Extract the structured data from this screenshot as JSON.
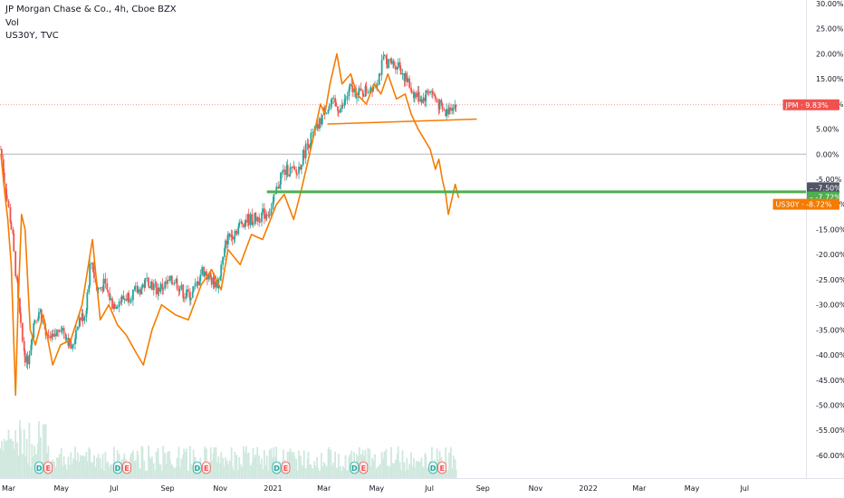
{
  "legend": {
    "line1": "JP Morgan Chase & Co., 4h, Cboe BZX",
    "line2": "Vol",
    "line3": "US30Y, TVC"
  },
  "colors": {
    "candle_up": "#26a69a",
    "candle_down": "#ef5350",
    "us30y": "#f57c00",
    "hline_green": "#4caf50",
    "hline_orange": "#f57c00",
    "zero_line": "#b2b5be",
    "volume": "#cfe8de",
    "tag_jpm": "#ef5350",
    "tag_dark": "#4f5563",
    "tag_green": "#4caf50",
    "tag_us30y": "#f57c00",
    "ev_dividend_bg": "#e3f6f3",
    "ev_dividend_fg": "#26a69a",
    "ev_earnings_bg": "#fdecec",
    "ev_earnings_fg": "#ef5350"
  },
  "chart_data": {
    "type": "line",
    "y_unit": "%",
    "ylim": [
      -62,
      30
    ],
    "xlim": [
      "2020-02-20",
      "2022-09-10"
    ],
    "y_ticks": [
      "30.00%",
      "25.00%",
      "20.00%",
      "15.00%",
      "10.00%",
      "5.00%",
      "0.00%",
      "-5.00%",
      "-10.00%",
      "-15.00%",
      "-20.00%",
      "-25.00%",
      "-30.00%",
      "-35.00%",
      "-40.00%",
      "-45.00%",
      "-50.00%",
      "-55.00%",
      "-60.00%"
    ],
    "y_tick_values": [
      30,
      25,
      20,
      15,
      10,
      5,
      0,
      -5,
      -10,
      -15,
      -20,
      -25,
      -30,
      -35,
      -40,
      -45,
      -50,
      -55,
      -60
    ],
    "x_ticks": [
      {
        "label": "Mar",
        "date": "2020-03-01"
      },
      {
        "label": "May",
        "date": "2020-05-01"
      },
      {
        "label": "Jul",
        "date": "2020-07-01"
      },
      {
        "label": "Sep",
        "date": "2020-09-01"
      },
      {
        "label": "Nov",
        "date": "2020-11-01"
      },
      {
        "label": "2021",
        "date": "2021-01-01"
      },
      {
        "label": "Mar",
        "date": "2021-03-01"
      },
      {
        "label": "May",
        "date": "2021-05-01"
      },
      {
        "label": "Jul",
        "date": "2021-07-01"
      },
      {
        "label": "Sep",
        "date": "2021-09-01"
      },
      {
        "label": "Nov",
        "date": "2021-11-01"
      },
      {
        "label": "2022",
        "date": "2022-01-01"
      },
      {
        "label": "Mar",
        "date": "2022-03-01"
      },
      {
        "label": "May",
        "date": "2022-05-01"
      },
      {
        "label": "Jul",
        "date": "2022-07-01"
      }
    ],
    "series": [
      {
        "name": "JP Morgan Chase & Co.",
        "kind": "candles",
        "points": [
          [
            "2020-02-21",
            1
          ],
          [
            "2020-02-28",
            -8
          ],
          [
            "2020-03-06",
            -16
          ],
          [
            "2020-03-13",
            -30
          ],
          [
            "2020-03-18",
            -38
          ],
          [
            "2020-03-23",
            -42
          ],
          [
            "2020-03-31",
            -33
          ],
          [
            "2020-04-07",
            -31
          ],
          [
            "2020-04-15",
            -37
          ],
          [
            "2020-04-23",
            -37
          ],
          [
            "2020-04-30",
            -34
          ],
          [
            "2020-05-07",
            -36
          ],
          [
            "2020-05-14",
            -39
          ],
          [
            "2020-05-21",
            -33
          ],
          [
            "2020-05-29",
            -32
          ],
          [
            "2020-06-05",
            -21
          ],
          [
            "2020-06-12",
            -27
          ],
          [
            "2020-06-20",
            -26
          ],
          [
            "2020-06-30",
            -30
          ],
          [
            "2020-07-10",
            -29
          ],
          [
            "2020-07-20",
            -28
          ],
          [
            "2020-07-31",
            -27
          ],
          [
            "2020-08-10",
            -25
          ],
          [
            "2020-08-20",
            -27
          ],
          [
            "2020-08-31",
            -26
          ],
          [
            "2020-09-10",
            -25
          ],
          [
            "2020-09-21",
            -28
          ],
          [
            "2020-09-30",
            -28
          ],
          [
            "2020-10-12",
            -23
          ],
          [
            "2020-10-22",
            -25
          ],
          [
            "2020-10-30",
            -26
          ],
          [
            "2020-11-09",
            -17
          ],
          [
            "2020-11-20",
            -15
          ],
          [
            "2020-11-30",
            -13
          ],
          [
            "2020-12-10",
            -13
          ],
          [
            "2020-12-21",
            -12
          ],
          [
            "2020-12-31",
            -11
          ],
          [
            "2021-01-11",
            -4
          ],
          [
            "2021-01-20",
            -3
          ],
          [
            "2021-01-29",
            -4
          ],
          [
            "2021-02-10",
            2
          ],
          [
            "2021-02-22",
            5
          ],
          [
            "2021-03-03",
            9
          ],
          [
            "2021-03-12",
            10
          ],
          [
            "2021-03-22",
            9
          ],
          [
            "2021-04-01",
            13
          ],
          [
            "2021-04-12",
            12
          ],
          [
            "2021-04-22",
            13
          ],
          [
            "2021-05-03",
            15
          ],
          [
            "2021-05-10",
            19
          ],
          [
            "2021-05-17",
            18
          ],
          [
            "2021-05-27",
            18
          ],
          [
            "2021-06-04",
            15
          ],
          [
            "2021-06-14",
            12
          ],
          [
            "2021-06-24",
            11
          ],
          [
            "2021-07-02",
            13
          ],
          [
            "2021-07-12",
            10
          ],
          [
            "2021-07-20",
            8
          ],
          [
            "2021-07-28",
            10
          ],
          [
            "2021-08-03",
            9.8
          ]
        ]
      },
      {
        "name": "US30Y",
        "kind": "line",
        "points": [
          [
            "2020-02-21",
            0
          ],
          [
            "2020-02-25",
            -7
          ],
          [
            "2020-02-29",
            -13
          ],
          [
            "2020-03-04",
            -22
          ],
          [
            "2020-03-09",
            -48
          ],
          [
            "2020-03-12",
            -30
          ],
          [
            "2020-03-16",
            -12
          ],
          [
            "2020-03-20",
            -15
          ],
          [
            "2020-03-26",
            -35
          ],
          [
            "2020-04-01",
            -38
          ],
          [
            "2020-04-10",
            -32
          ],
          [
            "2020-04-21",
            -42
          ],
          [
            "2020-04-30",
            -38
          ],
          [
            "2020-05-12",
            -37
          ],
          [
            "2020-05-25",
            -30
          ],
          [
            "2020-06-06",
            -17
          ],
          [
            "2020-06-15",
            -33
          ],
          [
            "2020-06-25",
            -30
          ],
          [
            "2020-07-05",
            -34
          ],
          [
            "2020-07-15",
            -36
          ],
          [
            "2020-07-28",
            -40
          ],
          [
            "2020-08-04",
            -42
          ],
          [
            "2020-08-14",
            -35
          ],
          [
            "2020-08-25",
            -30
          ],
          [
            "2020-09-10",
            -32
          ],
          [
            "2020-09-25",
            -33
          ],
          [
            "2020-10-10",
            -26
          ],
          [
            "2020-10-22",
            -23
          ],
          [
            "2020-11-02",
            -27
          ],
          [
            "2020-11-10",
            -19
          ],
          [
            "2020-11-24",
            -22
          ],
          [
            "2020-12-07",
            -16
          ],
          [
            "2020-12-20",
            -17
          ],
          [
            "2021-01-05",
            -10
          ],
          [
            "2021-01-14",
            -8
          ],
          [
            "2021-01-25",
            -13
          ],
          [
            "2021-02-03",
            -7
          ],
          [
            "2021-02-15",
            2
          ],
          [
            "2021-02-25",
            10
          ],
          [
            "2021-03-02",
            8
          ],
          [
            "2021-03-08",
            14
          ],
          [
            "2021-03-16",
            20
          ],
          [
            "2021-03-22",
            14
          ],
          [
            "2021-04-01",
            16
          ],
          [
            "2021-04-08",
            12
          ],
          [
            "2021-04-19",
            10
          ],
          [
            "2021-04-28",
            14
          ],
          [
            "2021-05-06",
            12
          ],
          [
            "2021-05-14",
            16
          ],
          [
            "2021-05-24",
            11
          ],
          [
            "2021-06-03",
            12
          ],
          [
            "2021-06-10",
            8
          ],
          [
            "2021-06-18",
            5
          ],
          [
            "2021-06-25",
            3
          ],
          [
            "2021-07-02",
            1
          ],
          [
            "2021-07-08",
            -3
          ],
          [
            "2021-07-12",
            -1
          ],
          [
            "2021-07-16",
            -5
          ],
          [
            "2021-07-20",
            -8
          ],
          [
            "2021-07-23",
            -12
          ],
          [
            "2021-07-27",
            -9
          ],
          [
            "2021-07-31",
            -6
          ],
          [
            "2021-08-04",
            -8.7
          ]
        ]
      }
    ],
    "annotations": [
      {
        "label": "JPM",
        "value": "9.83%",
        "y": 9.83
      },
      {
        "label": "",
        "value": "-7.50%",
        "y": -7.5
      },
      {
        "label": "",
        "value": "-7.72%",
        "y": -7.72
      },
      {
        "label": "US30Y",
        "value": "-8.72%",
        "y": -8.72
      }
    ],
    "horizontal_lines": [
      {
        "name": "support",
        "y": -7.5,
        "x_start": "2020-12-25",
        "x_end": "2022-09-10"
      },
      {
        "name": "trendline",
        "y_start": 6,
        "y_end": 7,
        "x_start": "2021-03-05",
        "x_end": "2021-08-25"
      }
    ],
    "events": [
      {
        "date": "2020-04-10",
        "types": [
          "D",
          "E"
        ]
      },
      {
        "date": "2020-07-10",
        "types": [
          "D",
          "E"
        ]
      },
      {
        "date": "2020-10-10",
        "types": [
          "D",
          "E"
        ]
      },
      {
        "date": "2021-01-10",
        "types": [
          "D",
          "E"
        ]
      },
      {
        "date": "2021-04-10",
        "types": [
          "D",
          "E"
        ]
      },
      {
        "date": "2021-07-10",
        "types": [
          "D",
          "E"
        ]
      }
    ],
    "grid": false
  }
}
